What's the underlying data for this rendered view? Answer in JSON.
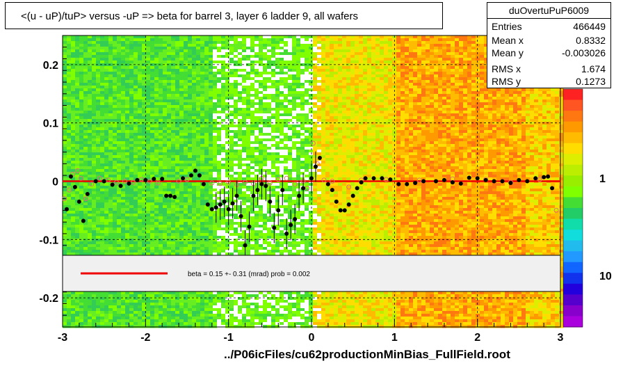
{
  "title": "<(u - uP)/tuP> versus  -uP => beta for barrel 3, layer 6 ladder 9, all wafers",
  "stats": {
    "name": "duOvertuPuP6009",
    "rows": [
      {
        "key": "Entries",
        "value": "466449"
      },
      {
        "key": "Mean x",
        "value": "0.8332"
      },
      {
        "key": "Mean y",
        "value": "-0.003026"
      },
      {
        "key": "RMS x",
        "value": "1.674"
      },
      {
        "key": "RMS y",
        "value": "0.1273"
      }
    ]
  },
  "fit_legend": "beta =    0.15 +-  0.31 (mrad) prob = 0.002",
  "x_caption": "../P06icFiles/cu62productionMinBias_FullField.root",
  "colors": {
    "fit_line": "#ee0000",
    "marker_open_stroke": "#e07070",
    "marker_filled": "#000000"
  },
  "chart_data": {
    "type": "heatmap",
    "xlim": [
      -3,
      3
    ],
    "ylim": [
      -0.25,
      0.25
    ],
    "x_ticks": [
      "-3",
      "-2",
      "-1",
      "0",
      "1",
      "2",
      "3"
    ],
    "y_ticks": [
      "0.2",
      "0.1",
      "0",
      "-0.1",
      "-0.2"
    ],
    "z_ticks": [
      "1",
      "10"
    ],
    "grid": true,
    "fit_line": {
      "y": 0
    },
    "profile_filled": [
      [
        -2.95,
        -0.048
      ],
      [
        -2.9,
        0.008
      ],
      [
        -2.85,
        -0.01
      ],
      [
        -2.8,
        -0.035
      ],
      [
        -2.75,
        -0.068
      ],
      [
        -2.7,
        -0.022
      ],
      [
        -2.6,
        0.0
      ],
      [
        -2.5,
        0.0
      ],
      [
        -2.4,
        -0.006
      ],
      [
        -2.3,
        -0.008
      ],
      [
        -2.2,
        -0.004
      ],
      [
        -2.1,
        0.002
      ],
      [
        -2.0,
        0.002
      ],
      [
        -1.9,
        0.004
      ],
      [
        -1.8,
        0.004
      ],
      [
        -1.75,
        -0.025
      ],
      [
        -1.7,
        -0.025
      ],
      [
        -1.65,
        -0.027
      ],
      [
        -1.55,
        0.005
      ],
      [
        -1.45,
        0.01
      ],
      [
        -1.4,
        0.018
      ],
      [
        -1.35,
        0.01
      ],
      [
        -1.3,
        -0.005
      ],
      [
        -1.25,
        -0.04
      ],
      [
        -1.2,
        -0.048
      ],
      [
        -1.15,
        -0.045
      ],
      [
        -1.1,
        -0.04
      ],
      [
        -1.05,
        -0.035
      ],
      [
        -1.0,
        -0.048
      ],
      [
        -0.95,
        -0.038
      ],
      [
        -0.9,
        -0.025
      ],
      [
        -0.85,
        -0.06
      ],
      [
        -0.8,
        -0.11
      ],
      [
        -0.75,
        -0.078
      ],
      [
        -0.7,
        -0.025
      ],
      [
        -0.65,
        -0.015
      ],
      [
        -0.6,
        -0.005
      ],
      [
        -0.55,
        -0.008
      ],
      [
        -0.5,
        -0.035
      ],
      [
        -0.45,
        -0.08
      ],
      [
        -0.4,
        -0.05
      ],
      [
        -0.35,
        -0.015
      ],
      [
        -0.3,
        -0.09
      ],
      [
        -0.25,
        -0.075
      ],
      [
        -0.2,
        -0.065
      ],
      [
        -0.15,
        -0.025
      ],
      [
        -0.1,
        -0.012
      ],
      [
        0.0,
        0.005
      ],
      [
        0.05,
        0.025
      ],
      [
        0.1,
        0.04
      ],
      [
        0.2,
        -0.005
      ],
      [
        0.25,
        -0.015
      ],
      [
        0.3,
        -0.035
      ],
      [
        0.35,
        -0.05
      ],
      [
        0.4,
        -0.05
      ],
      [
        0.45,
        -0.04
      ],
      [
        0.5,
        -0.025
      ],
      [
        0.55,
        -0.012
      ],
      [
        0.6,
        -0.002
      ],
      [
        0.65,
        0.005
      ],
      [
        0.75,
        0.005
      ],
      [
        0.85,
        0.005
      ],
      [
        0.95,
        0.003
      ],
      [
        1.05,
        -0.005
      ],
      [
        1.15,
        -0.005
      ],
      [
        1.25,
        -0.003
      ],
      [
        1.35,
        0.0
      ],
      [
        1.5,
        0.0
      ],
      [
        1.6,
        0.002
      ],
      [
        1.7,
        -0.002
      ],
      [
        1.8,
        -0.004
      ],
      [
        1.9,
        0.006
      ],
      [
        2.0,
        0.005
      ],
      [
        2.1,
        0.002
      ],
      [
        2.2,
        0.0
      ],
      [
        2.3,
        0.0
      ],
      [
        2.4,
        -0.003
      ],
      [
        2.5,
        0.002
      ],
      [
        2.6,
        0.0
      ],
      [
        2.7,
        0.005
      ],
      [
        2.8,
        0.007
      ],
      [
        2.85,
        0.008
      ],
      [
        2.9,
        -0.012
      ]
    ],
    "profile_open": [
      [
        -2.98,
        -0.03
      ],
      [
        -2.92,
        -0.015
      ],
      [
        -2.88,
        0.012
      ],
      [
        -2.82,
        0.018
      ],
      [
        -2.78,
        0.005
      ],
      [
        -2.72,
        -0.03
      ],
      [
        -2.65,
        -0.005
      ],
      [
        -2.55,
        0.005
      ],
      [
        -2.45,
        0.002
      ],
      [
        -2.35,
        -0.002
      ],
      [
        -2.25,
        0.0
      ],
      [
        -2.15,
        -0.002
      ],
      [
        -2.05,
        0.003
      ],
      [
        -1.95,
        0.0
      ],
      [
        -1.85,
        -0.003
      ],
      [
        -1.6,
        0.0
      ],
      [
        -1.5,
        0.003
      ],
      [
        -1.2,
        -0.003
      ],
      [
        -1.1,
        -0.004
      ],
      [
        -1.0,
        -0.002
      ],
      [
        -0.9,
        -0.006
      ],
      [
        -0.8,
        -0.002
      ],
      [
        -0.7,
        -0.004
      ],
      [
        -0.6,
        0.005
      ],
      [
        -0.5,
        -0.003
      ],
      [
        -0.4,
        0.003
      ],
      [
        -0.3,
        0.005
      ],
      [
        -0.2,
        -0.005
      ],
      [
        -0.1,
        0.0
      ],
      [
        -0.05,
        -0.012
      ],
      [
        0.02,
        0.065
      ],
      [
        0.07,
        0.03
      ],
      [
        0.15,
        0.002
      ],
      [
        0.25,
        0.0
      ],
      [
        0.45,
        -0.01
      ],
      [
        0.6,
        0.002
      ],
      [
        0.9,
        0.003
      ],
      [
        1.3,
        0.002
      ],
      [
        1.7,
        0.004
      ],
      [
        2.1,
        0.003
      ],
      [
        2.4,
        -0.002
      ],
      [
        2.75,
        0.003
      ],
      [
        2.95,
        -0.05
      ]
    ]
  }
}
